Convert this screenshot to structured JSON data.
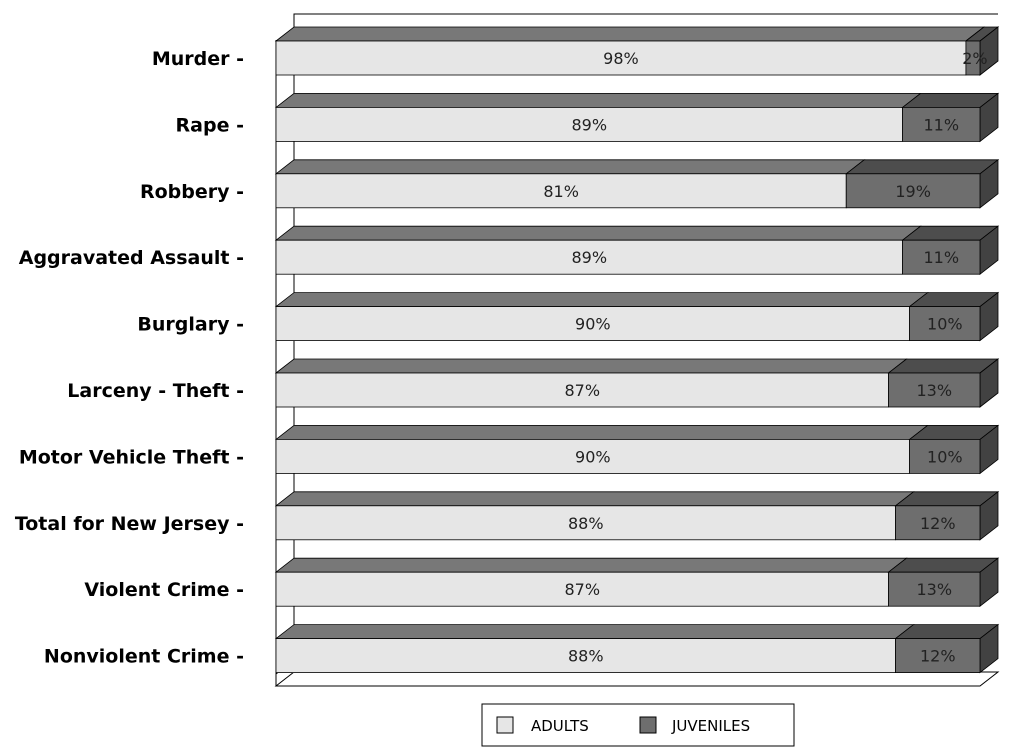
{
  "chart_data": {
    "type": "bar",
    "orientation": "horizontal",
    "stacked": true,
    "percent_stacked": true,
    "three_d": true,
    "categories": [
      "Murder -",
      "Rape -",
      "Robbery -",
      "Aggravated Assault -",
      "Burglary -",
      "Larceny - Theft -",
      "Motor Vehicle Theft -",
      "Total for New Jersey -",
      "Violent Crime -",
      "Nonviolent Crime -"
    ],
    "series": [
      {
        "name": "ADULTS",
        "color": "#e6e6e6",
        "values": [
          98,
          89,
          81,
          89,
          90,
          87,
          90,
          88,
          87,
          88
        ],
        "labels": [
          "98%",
          "89%",
          "81%",
          "89%",
          "90%",
          "87%",
          "90%",
          "88%",
          "87%",
          "88%"
        ]
      },
      {
        "name": "JUVENILES",
        "color": "#6e6e6e",
        "values": [
          2,
          11,
          19,
          11,
          10,
          13,
          10,
          12,
          13,
          12
        ],
        "labels": [
          "2%",
          "11%",
          "19%",
          "11%",
          "10%",
          "13%",
          "10%",
          "12%",
          "13%",
          "12%"
        ]
      }
    ],
    "xlim": [
      0,
      100
    ],
    "grid": false,
    "legend_position": "bottom"
  }
}
